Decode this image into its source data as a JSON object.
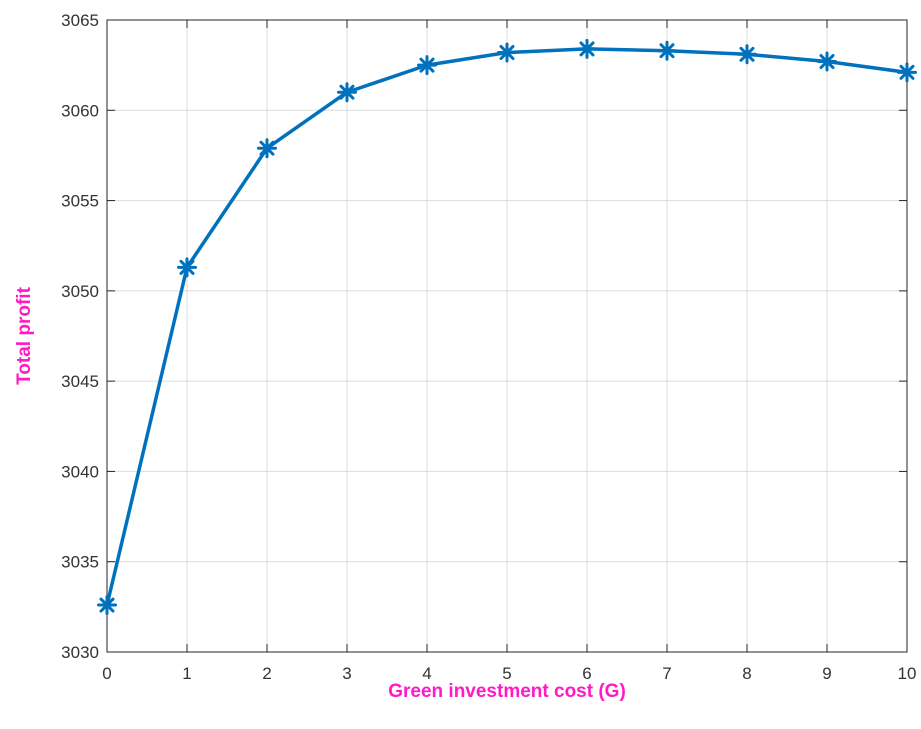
{
  "chart_data": {
    "type": "line",
    "xlabel": "Green investment cost (G)",
    "ylabel": "Total profit",
    "xlim": [
      0,
      10
    ],
    "ylim": [
      3030,
      3065
    ],
    "xticks": [
      0,
      1,
      2,
      3,
      4,
      5,
      6,
      7,
      8,
      9,
      10
    ],
    "yticks": [
      3030,
      3035,
      3040,
      3045,
      3050,
      3055,
      3060,
      3065
    ],
    "grid": true,
    "marker": "asterisk",
    "series": [
      {
        "x": [
          0,
          1,
          2,
          3,
          4,
          5,
          6,
          7,
          8,
          9,
          10
        ],
        "y": [
          3032.6,
          3051.3,
          3057.9,
          3061.0,
          3062.5,
          3063.2,
          3063.4,
          3063.3,
          3063.1,
          3062.7,
          3062.1
        ],
        "color": "#0072BD"
      }
    ],
    "label_color": "#FF1AC6"
  }
}
